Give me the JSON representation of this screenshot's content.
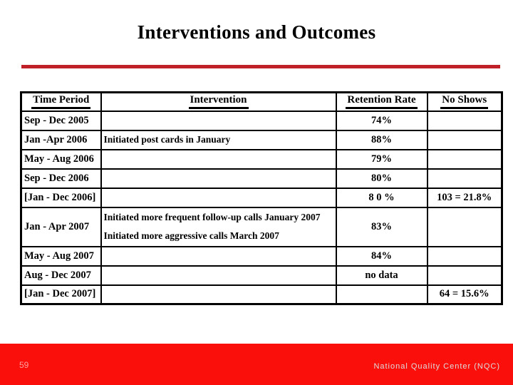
{
  "slide": {
    "title": "Interventions and Outcomes",
    "page_number": "59",
    "footer_text": "National Quality Center (NQC)"
  },
  "colors": {
    "divider_red": "#c02128",
    "footer_red": "#fb0f0b",
    "page_number_color": "#ff9e9e",
    "footer_text_color": "#dcdcdc",
    "table_border": "#000000",
    "title_text": "#000000"
  },
  "table": {
    "headers": [
      "Time Period",
      "Intervention",
      "Retention Rate",
      "No Shows"
    ],
    "rows": [
      {
        "period": "Sep - Dec 2005",
        "intervention": "",
        "retention": "74%",
        "no_shows": ""
      },
      {
        "period": "Jan -Apr 2006",
        "intervention": "Initiated post cards in January",
        "retention": "88%",
        "no_shows": ""
      },
      {
        "period": "May - Aug 2006",
        "intervention": "",
        "retention": "79%",
        "no_shows": ""
      },
      {
        "period": "Sep - Dec 2006",
        "intervention": "",
        "retention": "80%",
        "no_shows": ""
      },
      {
        "period": "[Jan - Dec 2006]",
        "intervention": "",
        "retention": "8 0 %",
        "no_shows": "103 = 21.8%"
      },
      {
        "period": "Jan - Apr 2007",
        "intervention": "Initiated more frequent follow-up calls January 2007",
        "intervention2": "Initiated more aggressive calls March 2007",
        "retention": "83%",
        "no_shows": ""
      },
      {
        "period": "May - Aug 2007",
        "intervention": "",
        "retention": "84%",
        "no_shows": ""
      },
      {
        "period": "Aug - Dec 2007",
        "intervention": "",
        "retention": "no data",
        "no_shows": ""
      },
      {
        "period": "[Jan - Dec 2007]",
        "intervention": "",
        "retention": "",
        "no_shows": "64 = 15.6%"
      }
    ]
  },
  "chart_data": {
    "type": "table",
    "title": "Interventions and Outcomes",
    "columns": [
      "Time Period",
      "Intervention",
      "Retention Rate",
      "No Shows"
    ],
    "rows": [
      [
        "Sep - Dec 2005",
        "",
        "74%",
        ""
      ],
      [
        "Jan -Apr 2006",
        "Initiated post cards in January",
        "88%",
        ""
      ],
      [
        "May - Aug 2006",
        "",
        "79%",
        ""
      ],
      [
        "Sep - Dec 2006",
        "",
        "80%",
        ""
      ],
      [
        "[Jan - Dec 2006]",
        "",
        "8 0 %",
        "103 = 21.8%"
      ],
      [
        "Jan - Apr 2007",
        "Initiated more frequent follow-up calls January 2007 / Initiated more aggressive calls March 2007",
        "83%",
        ""
      ],
      [
        "May - Aug 2007",
        "",
        "84%",
        ""
      ],
      [
        "Aug - Dec 2007",
        "",
        "no data",
        ""
      ],
      [
        "[Jan - Dec 2007]",
        "",
        "",
        "64 = 15.6%"
      ]
    ]
  }
}
